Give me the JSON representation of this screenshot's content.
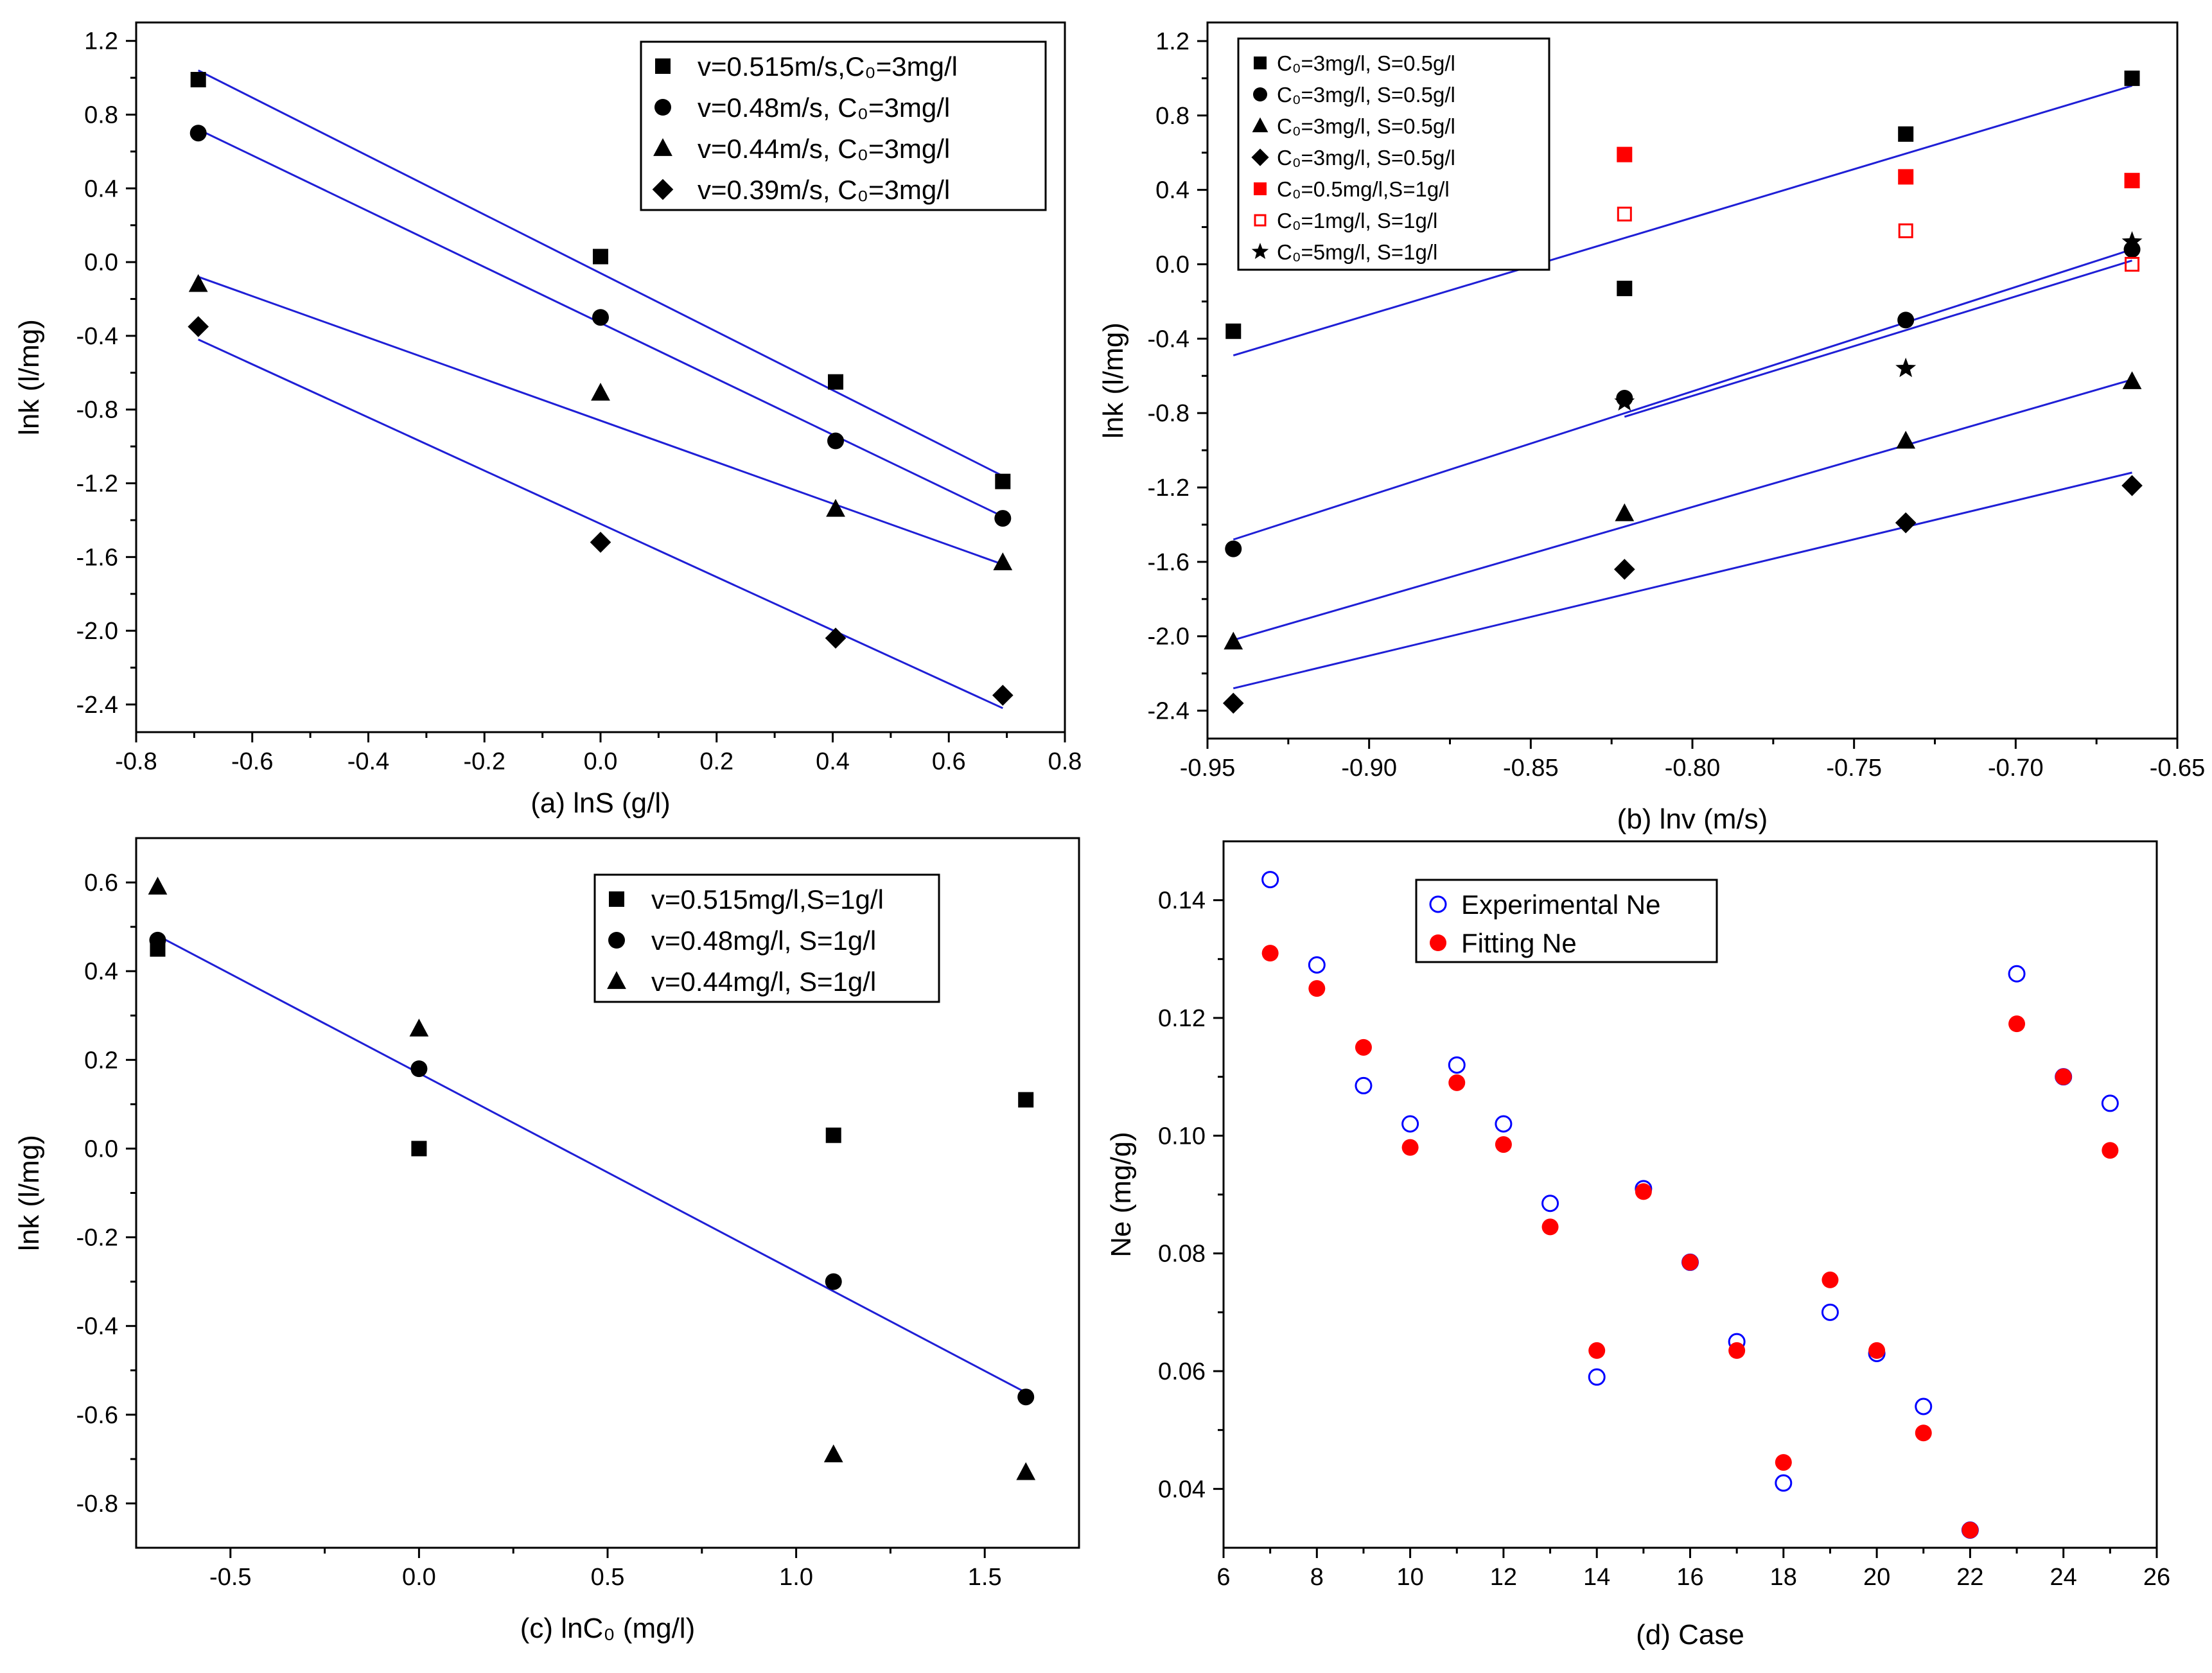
{
  "chart_data": [
    {
      "id": "a",
      "type": "scatter",
      "caption": "(a)  lnS (g/l)",
      "xlabel": "lnS (g/l)",
      "ylabel": "lnk (l/mg)",
      "xlim": [
        -0.8,
        0.8
      ],
      "ylim": [
        -2.55,
        1.3
      ],
      "xticks": [
        -0.8,
        -0.6,
        -0.4,
        -0.2,
        0.0,
        0.2,
        0.4,
        0.6,
        0.8
      ],
      "xtick_labels": [
        "-0.8",
        "-0.6",
        "-0.4",
        "-0.2",
        "0.0",
        "0.2",
        "0.4",
        "0.6",
        "0.8"
      ],
      "yticks": [
        -2.4,
        -2.0,
        -1.6,
        -1.2,
        -0.8,
        -0.4,
        0.0,
        0.4,
        0.8,
        1.2
      ],
      "ytick_labels": [
        "-2.4",
        "-2.0",
        "-1.6",
        "-1.2",
        "-0.8",
        "-0.4",
        "0.0",
        "0.4",
        "0.8",
        "1.2"
      ],
      "legend_position": "top-right",
      "series": [
        {
          "name": "v=0.515m/s,C₀=3mg/l",
          "marker": "square",
          "color": "#000000",
          "x": [
            -0.693,
            0.0,
            0.405,
            0.693
          ],
          "y": [
            0.99,
            0.03,
            -0.65,
            -1.19
          ]
        },
        {
          "name": "v=0.48m/s,  C₀=3mg/l",
          "marker": "circle",
          "color": "#000000",
          "x": [
            -0.693,
            0.0,
            0.405,
            0.693
          ],
          "y": [
            0.7,
            -0.3,
            -0.97,
            -1.39
          ]
        },
        {
          "name": "v=0.44m/s,  C₀=3mg/l",
          "marker": "triangle",
          "color": "#000000",
          "x": [
            -0.693,
            0.0,
            0.405,
            0.693
          ],
          "y": [
            -0.12,
            -0.71,
            -1.34,
            -1.63
          ]
        },
        {
          "name": "v=0.39m/s,  C₀=3mg/l",
          "marker": "diamond",
          "color": "#000000",
          "x": [
            -0.693,
            0.0,
            0.405,
            0.693
          ],
          "y": [
            -0.35,
            -1.52,
            -2.04,
            -2.35
          ]
        }
      ],
      "fit_lines": [
        {
          "x": [
            -0.693,
            0.693
          ],
          "y": [
            1.04,
            -1.16
          ],
          "color": "#1f1fd6"
        },
        {
          "x": [
            -0.693,
            0.693
          ],
          "y": [
            0.72,
            -1.38
          ],
          "color": "#1f1fd6"
        },
        {
          "x": [
            -0.693,
            0.693
          ],
          "y": [
            -0.08,
            -1.64
          ],
          "color": "#1f1fd6"
        },
        {
          "x": [
            -0.693,
            0.693
          ],
          "y": [
            -0.42,
            -2.42
          ],
          "color": "#1f1fd6"
        }
      ]
    },
    {
      "id": "b",
      "type": "scatter",
      "caption": "(b)  lnv (m/s)",
      "xlabel": "lnv (m/s)",
      "ylabel": "lnk (l/mg)",
      "xlim": [
        -0.95,
        -0.65
      ],
      "ylim": [
        -2.55,
        1.3
      ],
      "xticks": [
        -0.95,
        -0.9,
        -0.85,
        -0.8,
        -0.75,
        -0.7,
        -0.65
      ],
      "xtick_labels": [
        "-0.95",
        "-0.90",
        "-0.85",
        "-0.80",
        "-0.75",
        "-0.70",
        "-0.65"
      ],
      "yticks": [
        -2.4,
        -2.0,
        -1.6,
        -1.2,
        -0.8,
        -0.4,
        0.0,
        0.4,
        0.8,
        1.2
      ],
      "ytick_labels": [
        "-2.4",
        "-2.0",
        "-1.6",
        "-1.2",
        "-0.8",
        "-0.4",
        "0.0",
        "0.4",
        "0.8",
        "1.2"
      ],
      "legend_position": "top-left",
      "series": [
        {
          "name": "C₀=3mg/l,   S=0.5g/l",
          "marker": "square",
          "color": "#000000",
          "x": [
            -0.942,
            -0.821,
            -0.734,
            -0.664
          ],
          "y": [
            -0.36,
            -0.13,
            0.7,
            1.0
          ]
        },
        {
          "name": "C₀=3mg/l,   S=0.5g/l",
          "marker": "circle",
          "color": "#000000",
          "x": [
            -0.942,
            -0.821,
            -0.734,
            -0.664
          ],
          "y": [
            -1.53,
            -0.72,
            -0.3,
            0.08
          ]
        },
        {
          "name": "C₀=3mg/l,   S=0.5g/l",
          "marker": "triangle",
          "color": "#000000",
          "x": [
            -0.942,
            -0.821,
            -0.734,
            -0.664
          ],
          "y": [
            -2.03,
            -1.34,
            -0.95,
            -0.63
          ]
        },
        {
          "name": "C₀=3mg/l,   S=0.5g/l",
          "marker": "diamond",
          "color": "#000000",
          "x": [
            -0.942,
            -0.821,
            -0.734,
            -0.664
          ],
          "y": [
            -2.36,
            -1.64,
            -1.39,
            -1.19
          ]
        },
        {
          "name": "C₀=0.5mg/l,S=1g/l",
          "marker": "square",
          "color": "#ff0000",
          "x": [
            -0.821,
            -0.734,
            -0.664
          ],
          "y": [
            0.59,
            0.47,
            0.45
          ]
        },
        {
          "name": "C₀=1mg/l,   S=1g/l",
          "marker": "square-open",
          "color": "#ff0000",
          "x": [
            -0.821,
            -0.734,
            -0.664
          ],
          "y": [
            0.27,
            0.18,
            0.0
          ]
        },
        {
          "name": "C₀=5mg/l,   S=1g/l",
          "marker": "star",
          "color": "#000000",
          "x": [
            -0.821,
            -0.734,
            -0.664
          ],
          "y": [
            -0.74,
            -0.56,
            0.12
          ]
        }
      ],
      "fit_lines": [
        {
          "x": [
            -0.942,
            -0.664
          ],
          "y": [
            -0.49,
            0.96
          ],
          "color": "#1f1fd6"
        },
        {
          "x": [
            -0.942,
            -0.664
          ],
          "y": [
            -1.48,
            0.08
          ],
          "color": "#1f1fd6"
        },
        {
          "x": [
            -0.821,
            -0.664
          ],
          "y": [
            -0.82,
            0.02
          ],
          "color": "#1f1fd6"
        },
        {
          "x": [
            -0.942,
            -0.664
          ],
          "y": [
            -2.02,
            -0.62
          ],
          "color": "#1f1fd6"
        },
        {
          "x": [
            -0.942,
            -0.664
          ],
          "y": [
            -2.28,
            -1.12
          ],
          "color": "#1f1fd6"
        }
      ]
    },
    {
      "id": "c",
      "type": "scatter",
      "caption": "(c)  lnC₀ (mg/l)",
      "xlabel": "lnC₀ (mg/l)",
      "ylabel": "lnk (l/mg)",
      "xlim": [
        -0.75,
        1.75
      ],
      "ylim": [
        -0.9,
        0.7
      ],
      "xticks": [
        -0.5,
        0.0,
        0.5,
        1.0,
        1.5
      ],
      "xtick_labels": [
        "-0.5",
        "0.0",
        "0.5",
        "1.0",
        "1.5"
      ],
      "yticks": [
        -0.8,
        -0.6,
        -0.4,
        -0.2,
        0.0,
        0.2,
        0.4,
        0.6
      ],
      "ytick_labels": [
        "-0.8",
        "-0.6",
        "-0.4",
        "-0.2",
        "0.0",
        "0.2",
        "0.4",
        "0.6"
      ],
      "legend_position": "top-right",
      "series": [
        {
          "name": "v=0.515mg/l,S=1g/l",
          "marker": "square",
          "color": "#000000",
          "x": [
            -0.693,
            0.0,
            1.099,
            1.609
          ],
          "y": [
            0.45,
            0.0,
            0.03,
            0.11
          ]
        },
        {
          "name": "v=0.48mg/l,  S=1g/l",
          "marker": "circle",
          "color": "#000000",
          "x": [
            -0.693,
            0.0,
            1.099,
            1.609
          ],
          "y": [
            0.47,
            0.18,
            -0.3,
            -0.56
          ]
        },
        {
          "name": "v=0.44mg/l,  S=1g/l",
          "marker": "triangle",
          "color": "#000000",
          "x": [
            -0.693,
            0.0,
            1.099,
            1.609
          ],
          "y": [
            0.59,
            0.27,
            -0.69,
            -0.73
          ]
        }
      ],
      "fit_lines": [
        {
          "x": [
            -0.693,
            1.609
          ],
          "y": [
            0.48,
            -0.55
          ],
          "color": "#1f1fd6"
        }
      ]
    },
    {
      "id": "d",
      "type": "scatter",
      "caption": "(d)  Case",
      "xlabel": "Case",
      "ylabel": "Ne (mg/g)",
      "xlim": [
        6,
        26
      ],
      "ylim": [
        0.03,
        0.15
      ],
      "xticks": [
        6,
        8,
        10,
        12,
        14,
        16,
        18,
        20,
        22,
        24,
        26
      ],
      "xtick_labels": [
        "6",
        "8",
        "10",
        "12",
        "14",
        "16",
        "18",
        "20",
        "22",
        "24",
        "26"
      ],
      "yticks": [
        0.04,
        0.06,
        0.08,
        0.1,
        0.12,
        0.14
      ],
      "ytick_labels": [
        "0.04",
        "0.06",
        "0.08",
        "0.10",
        "0.12",
        "0.14"
      ],
      "legend_position": "top-center",
      "series": [
        {
          "name": "Experimental Ne",
          "marker": "circle-open",
          "color": "#0000ff",
          "x": [
            7,
            8,
            9,
            10,
            11,
            12,
            13,
            14,
            15,
            16,
            17,
            18,
            19,
            20,
            21,
            22,
            23,
            24,
            25
          ],
          "y": [
            0.1435,
            0.129,
            0.1085,
            0.102,
            0.112,
            0.102,
            0.0885,
            0.059,
            0.091,
            0.0785,
            0.065,
            0.041,
            0.07,
            0.063,
            0.054,
            0.033,
            0.1275,
            0.11,
            0.1055
          ]
        },
        {
          "name": "Fitting Ne",
          "marker": "circle",
          "color": "#ff0000",
          "x": [
            7,
            8,
            9,
            10,
            11,
            12,
            13,
            14,
            15,
            16,
            17,
            18,
            19,
            20,
            21,
            22,
            23,
            24,
            25
          ],
          "y": [
            0.131,
            0.125,
            0.115,
            0.098,
            0.109,
            0.0985,
            0.0845,
            0.0635,
            0.0905,
            0.0785,
            0.0635,
            0.0445,
            0.0755,
            0.0635,
            0.0495,
            0.033,
            0.119,
            0.11,
            0.0975
          ]
        }
      ]
    }
  ]
}
